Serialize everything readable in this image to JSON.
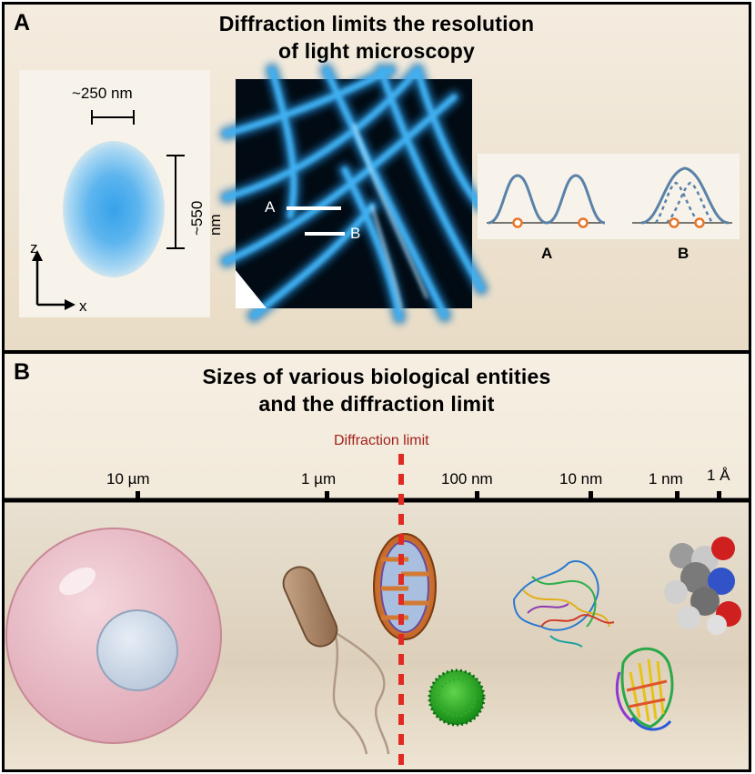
{
  "panel_a": {
    "letter": "A",
    "title_line1": "Diffraction limits the resolution",
    "title_line2": "of light microscopy",
    "psf": {
      "width_label": "~250 nm",
      "height_label": "~550 nm",
      "axis_z": "z",
      "axis_x": "x",
      "color": "#2f9ee8"
    },
    "image_markers": {
      "a": "A",
      "b": "B"
    },
    "profiles": {
      "label_a": "A",
      "label_b": "B",
      "curve_color": "#5a82a8",
      "point_color": "#e8762a"
    }
  },
  "panel_b": {
    "letter": "B",
    "title_line1": "Sizes of various biological entities",
    "title_line2": "and the diffraction limit",
    "diffraction_label": "Diffraction limit",
    "diffraction_color": "#e02a22",
    "scale_ticks": [
      "10 µm",
      "1 µm",
      "100 nm",
      "10 nm",
      "1 nm",
      "1 Å"
    ],
    "entities": [
      "cell-icon",
      "bacterium-icon",
      "mitochondrion-icon",
      "virus-icon",
      "protein-complex-icon",
      "small-protein-icon",
      "small-molecule-icon"
    ]
  }
}
